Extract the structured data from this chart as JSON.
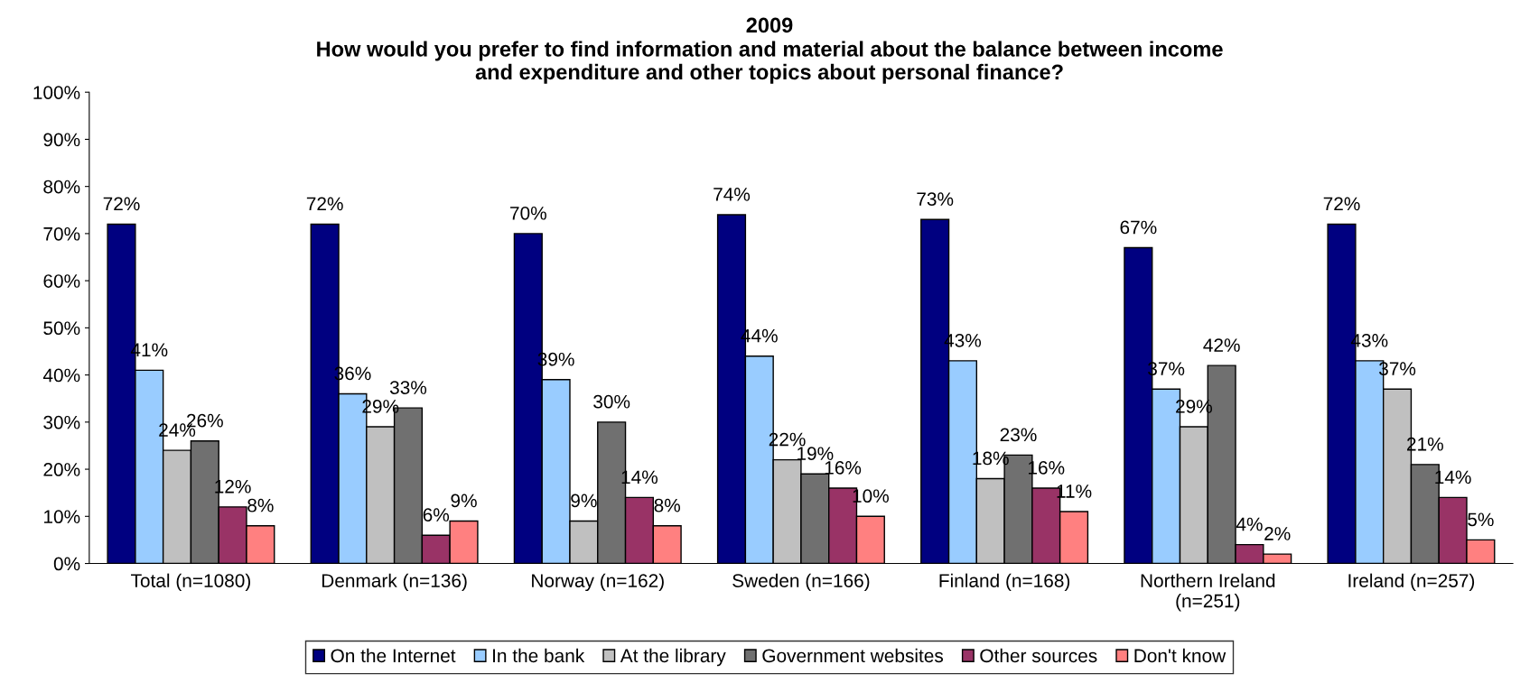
{
  "chart_data": {
    "type": "bar",
    "title": "2009",
    "subtitle": "How would you prefer to find information and material about the balance between income\nand expenditure and other topics about personal finance?",
    "categories": [
      "Total (n=1080)",
      "Denmark (n=136)",
      "Norway (n=162)",
      "Sweden (n=166)",
      "Finland (n=168)",
      "Northern Ireland\n(n=251)",
      "Ireland (n=257)"
    ],
    "series": [
      {
        "name": "On the Internet",
        "color": "#000080",
        "values": [
          72,
          72,
          70,
          74,
          73,
          67,
          72
        ],
        "value_labels": [
          "72%",
          "72%",
          "70%",
          "74%",
          "73%",
          "67%",
          "72%"
        ]
      },
      {
        "name": "In the bank",
        "color": "#99ccff",
        "values": [
          41,
          36,
          39,
          44,
          43,
          37,
          43
        ],
        "value_labels": [
          "41%",
          "36%",
          "39%",
          "44%",
          "43%",
          "37%",
          "43%"
        ]
      },
      {
        "name": "At the library",
        "color": "#c0c0c0",
        "values": [
          24,
          29,
          9,
          22,
          18,
          29,
          37
        ],
        "value_labels": [
          "24%",
          "29%",
          "9%",
          "22%",
          "18%",
          "29%",
          "37%"
        ]
      },
      {
        "name": "Government websites",
        "color": "#707070",
        "values": [
          26,
          33,
          30,
          19,
          23,
          42,
          21
        ],
        "value_labels": [
          "26%",
          "33%",
          "30%",
          "19%",
          "23%",
          "42%",
          "21%"
        ]
      },
      {
        "name": "Other sources",
        "color": "#993366",
        "values": [
          12,
          6,
          14,
          16,
          16,
          4,
          14
        ],
        "value_labels": [
          "12%",
          "6%",
          "14%",
          "16%",
          "16%",
          "4%",
          "14%"
        ]
      },
      {
        "name": "Don't know",
        "color": "#ff8080",
        "values": [
          8,
          9,
          8,
          10,
          11,
          2,
          5
        ],
        "value_labels": [
          "8%",
          "9%",
          "8%",
          "10%",
          "11%",
          "2%",
          "5%"
        ]
      }
    ],
    "ylim": [
      0,
      100
    ],
    "yticks": [
      {
        "value": 0,
        "label": "0%"
      },
      {
        "value": 10,
        "label": "10%"
      },
      {
        "value": 20,
        "label": "20%"
      },
      {
        "value": 30,
        "label": "30%"
      },
      {
        "value": 40,
        "label": "40%"
      },
      {
        "value": 50,
        "label": "50%"
      },
      {
        "value": 60,
        "label": "60%"
      },
      {
        "value": 70,
        "label": "70%"
      },
      {
        "value": 80,
        "label": "80%"
      },
      {
        "value": 90,
        "label": "90%"
      },
      {
        "value": 100,
        "label": "100%"
      }
    ],
    "grid": false,
    "legend": "bottom"
  }
}
